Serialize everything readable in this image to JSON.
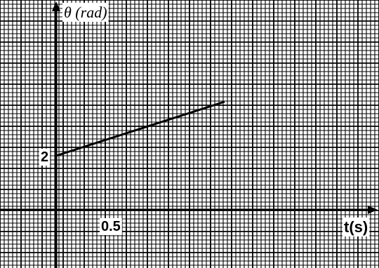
{
  "chart_data": {
    "type": "line",
    "title": "",
    "xlabel": "t(s)",
    "ylabel": "θ (rad)",
    "x_ticks": [
      {
        "value": 0.5,
        "label": "0.5"
      }
    ],
    "y_ticks": [
      {
        "value": 2,
        "label": "2"
      }
    ],
    "xlim": [
      -0.2,
      1.75
    ],
    "ylim": [
      -0.4,
      4.2
    ],
    "grid": true,
    "colors": {
      "grid": "#000000",
      "line": "#000000",
      "background": "#ffffff"
    },
    "series": [
      {
        "x": [
          0,
          1.5
        ],
        "y": [
          2,
          4.0
        ]
      }
    ]
  }
}
